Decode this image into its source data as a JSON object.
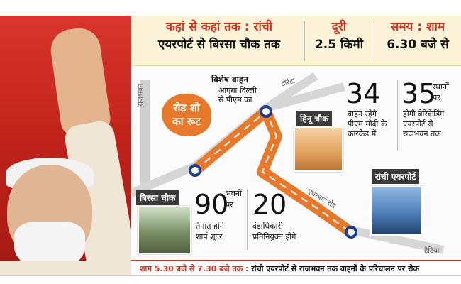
{
  "header": {
    "route_label": "कहां से कहां तक : रांची",
    "route_value": "एयरपोर्ट से बिरसा चौक तक",
    "distance_label": "दूरी",
    "distance_value": "2.5 किमी",
    "time_label": "समय : शाम",
    "time_value": "6.30 बजे से"
  },
  "map": {
    "badge_line1": "रोड शो",
    "badge_line2": "का रूट",
    "special_vehicle_title": "विशेष वाहन",
    "special_vehicle_text1": "आएगा दिल्ली",
    "special_vehicle_text2": "से पीएम का",
    "road_rajbhavan": "राजभवन",
    "road_doranda": "डोरंडा",
    "road_airport": "एयरपोर्ट रोड",
    "road_hatia": "हैटिया",
    "hinoo_label": "हिनू चौक",
    "birsa_label": "बिरसा चौक",
    "airport_label": "रांची एयरपोर्ट"
  },
  "stats": {
    "vehicles_num": "34",
    "vehicles_text1": "वाहन रहेंगे",
    "vehicles_text2": "पीएम मोदी के",
    "vehicles_text3": "कारकेड में",
    "places_num": "35",
    "places_text1": "स्थानों",
    "places_text2": "पर",
    "places_text3": "होगी बेरिकेडिंग",
    "places_text4": "एयरपोर्ट से",
    "places_text5": "राजभवन तक",
    "buildings_num": "90",
    "buildings_text1": "भवनों",
    "buildings_text2": "पर",
    "buildings_text3": "तैनात होंगे",
    "buildings_text4": "शार्प शूटर",
    "magistrates_num": "20",
    "magistrates_text1": "दंडाधिकारी",
    "magistrates_text2": "प्रतिनियुक्त होंगे"
  },
  "footer": {
    "time_range": "शाम 5.30 बजे से 7.30 बजे तक :",
    "notice": "रांची एयरपोर्ट से राजभवन तक वाहनों के परिचालन पर रोक"
  },
  "colors": {
    "accent_red": "#d8301e",
    "route_orange": "#e9792a",
    "header_bg": "#fdf3d8"
  }
}
